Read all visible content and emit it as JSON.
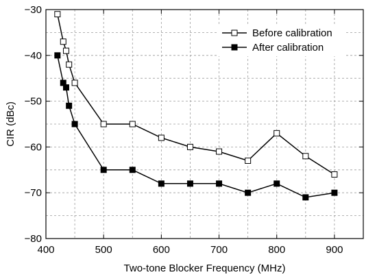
{
  "chart_data": {
    "type": "line",
    "title": "",
    "xlabel": "Two-tone Blocker Frequency (MHz)",
    "ylabel": "CIR (dBc)",
    "xlim": [
      400,
      950
    ],
    "ylim": [
      -80,
      -30
    ],
    "xticks": [
      400,
      500,
      600,
      700,
      800,
      900
    ],
    "yticks": [
      -80,
      -70,
      -60,
      -50,
      -40,
      -30
    ],
    "xtick_labels": [
      "400",
      "500",
      "600",
      "700",
      "800",
      "900"
    ],
    "ytick_labels": [
      "−80",
      "−70",
      "−60",
      "−50",
      "−40",
      "−30"
    ],
    "grid": true,
    "legend_position": "top-right",
    "series": [
      {
        "name": "Before calibration",
        "marker": "open-square",
        "color": "#000000",
        "x": [
          420,
          430,
          435,
          440,
          450,
          500,
          550,
          600,
          650,
          700,
          750,
          800,
          850,
          900
        ],
        "y": [
          -31,
          -37,
          -39,
          -42,
          -46,
          -55,
          -55,
          -58,
          -60,
          -61,
          -63,
          -57,
          -62,
          -66
        ]
      },
      {
        "name": "After calibration",
        "marker": "filled-square",
        "color": "#000000",
        "x": [
          420,
          430,
          435,
          440,
          450,
          500,
          550,
          600,
          650,
          700,
          750,
          800,
          850,
          900
        ],
        "y": [
          -40,
          -46,
          -47,
          -51,
          -55,
          -65,
          -65,
          -68,
          -68,
          -68,
          -70,
          -68,
          -71,
          -70
        ]
      }
    ]
  }
}
